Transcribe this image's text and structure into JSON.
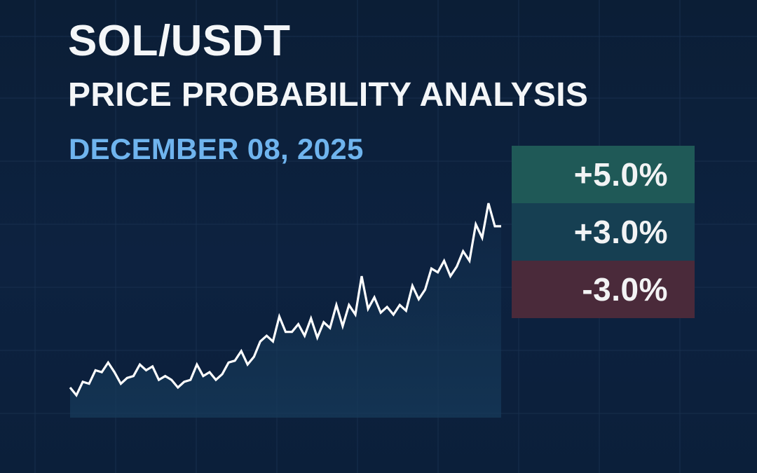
{
  "header": {
    "title": "SOL/USDT",
    "subtitle": "PRICE PROBABILITY ANALYSIS",
    "date": "DECEMBER 08, 2025"
  },
  "levels": [
    {
      "label": "+5.0%",
      "color": "#1f5957"
    },
    {
      "label": "+3.0%",
      "color": "#163f52"
    },
    {
      "label": "-3.0%",
      "color": "#4a2a3a"
    }
  ],
  "colors": {
    "background": "#0c1f38",
    "line": "#ffffff",
    "date_accent": "#6fb4ee",
    "area_fill": "#163a5a"
  },
  "chart_data": {
    "type": "line",
    "title": "SOL/USDT Price Probability Analysis",
    "subtitle": "December 08, 2025",
    "xlabel": "",
    "ylabel": "",
    "grid": true,
    "legend": "none",
    "note": "Unlabeled axes; values are relative pixel-derived price levels (higher = higher price), normalized 0-100.",
    "x": [
      0,
      1,
      2,
      3,
      4,
      5,
      6,
      7,
      8,
      9,
      10,
      11,
      12,
      13,
      14,
      15,
      16,
      17,
      18,
      19,
      20,
      21,
      22,
      23,
      24,
      25,
      26,
      27,
      28,
      29,
      30,
      31,
      32,
      33,
      34,
      35,
      36,
      37,
      38,
      39,
      40,
      41,
      42,
      43,
      44,
      45,
      46,
      47,
      48,
      49,
      50,
      51,
      52,
      53,
      54,
      55,
      56,
      57,
      58,
      59,
      60,
      61,
      62,
      63,
      64,
      65,
      66,
      67,
      68
    ],
    "values": [
      4,
      0,
      7,
      6,
      13,
      12,
      17,
      12,
      6,
      9,
      10,
      16,
      13,
      15,
      8,
      10,
      8,
      4,
      7,
      8,
      16,
      10,
      12,
      8,
      11,
      17,
      18,
      23,
      16,
      20,
      28,
      31,
      28,
      41,
      33,
      33,
      37,
      31,
      40,
      30,
      38,
      35,
      47,
      36,
      47,
      42,
      62,
      45,
      51,
      43,
      46,
      42,
      47,
      44,
      57,
      50,
      55,
      66,
      64,
      70,
      62,
      67,
      75,
      70,
      89,
      82,
      100,
      88,
      88
    ],
    "annotations": [
      {
        "label": "+5.0%",
        "type": "band",
        "color": "#1f5957"
      },
      {
        "label": "+3.0%",
        "type": "band",
        "color": "#163f52"
      },
      {
        "label": "-3.0%",
        "type": "band",
        "color": "#4a2a3a"
      }
    ]
  }
}
